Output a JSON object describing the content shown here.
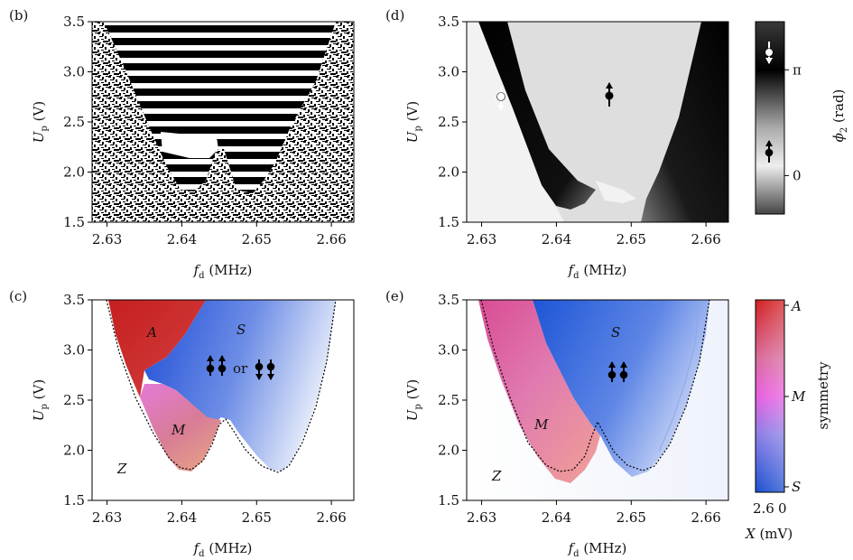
{
  "chart_data": [
    {
      "id": "b",
      "type": "heatmap",
      "panel_label": "(b)",
      "xlabel_main": "f",
      "xlabel_sub": "d",
      "xlabel_unit": " (MHz)",
      "ylabel_main": "U",
      "ylabel_sub": "p",
      "ylabel_unit": " (V)",
      "xlim": [
        2.628,
        2.663
      ],
      "ylim": [
        1.5,
        3.5
      ],
      "xticks": [
        2.63,
        2.64,
        2.65,
        2.66
      ],
      "yticks": [
        1.5,
        2.0,
        2.5,
        3.0,
        3.5
      ],
      "xtick_labels": [
        "2.63",
        "2.64",
        "2.65",
        "2.66"
      ],
      "ytick_labels": [
        "1.5",
        "2.0",
        "2.5",
        "3.0",
        "3.5"
      ],
      "colormap": "binary",
      "boundary": {
        "left_arm": [
          [
            2.6305,
            3.5
          ],
          [
            2.6345,
            3.0
          ],
          [
            2.6375,
            2.5
          ],
          [
            2.6395,
            2.1
          ],
          [
            2.641,
            1.9
          ],
          [
            2.6425,
            1.85
          ]
        ],
        "middle_peak": [
          [
            2.6435,
            1.9
          ],
          [
            2.6455,
            2.25
          ],
          [
            2.6465,
            2.3
          ],
          [
            2.648,
            2.0
          ],
          [
            2.65,
            1.85
          ],
          [
            2.6515,
            1.85
          ]
        ],
        "right_arm": [
          [
            2.653,
            1.95
          ],
          [
            2.655,
            2.15
          ],
          [
            2.657,
            2.5
          ],
          [
            2.659,
            2.95
          ],
          [
            2.6605,
            3.5
          ]
        ]
      }
    },
    {
      "id": "d",
      "type": "heatmap",
      "panel_label": "(d)",
      "xlabel_main": "f",
      "xlabel_sub": "d",
      "xlabel_unit": " (MHz)",
      "ylabel_main": "U",
      "ylabel_sub": "p",
      "ylabel_unit": " (V)",
      "xlim": [
        2.628,
        2.663
      ],
      "ylim": [
        1.5,
        3.5
      ],
      "xticks": [
        2.63,
        2.64,
        2.65,
        2.66
      ],
      "yticks": [
        1.5,
        2.0,
        2.5,
        3.0,
        3.5
      ],
      "xtick_labels": [
        "2.63",
        "2.64",
        "2.65",
        "2.66"
      ],
      "ytick_labels": [
        "1.5",
        "2.0",
        "2.5",
        "3.0",
        "3.5"
      ],
      "colormap": "gray",
      "colorbar": {
        "label": "ϕ",
        "label_sub": "2",
        "label_unit": " (rad)",
        "ticks": [
          {
            "value": "π",
            "frac": 0.75
          },
          {
            "value": "0",
            "frac": 0.2
          }
        ]
      },
      "annotations": [
        "spin-down-white",
        "spin-up-black"
      ]
    },
    {
      "id": "c",
      "type": "heatmap",
      "panel_label": "(c)",
      "xlabel_main": "f",
      "xlabel_sub": "d",
      "xlabel_unit": " (MHz)",
      "ylabel_main": "U",
      "ylabel_sub": "p",
      "ylabel_unit": " (V)",
      "xlim": [
        2.628,
        2.663
      ],
      "ylim": [
        1.5,
        3.5
      ],
      "xticks": [
        2.63,
        2.64,
        2.65,
        2.66
      ],
      "yticks": [
        1.5,
        2.0,
        2.5,
        3.0,
        3.5
      ],
      "xtick_labels": [
        "2.63",
        "2.64",
        "2.65",
        "2.66"
      ],
      "ytick_labels": [
        "1.5",
        "2.0",
        "2.5",
        "3.0",
        "3.5"
      ],
      "regions": [
        "A",
        "S",
        "M",
        "Z"
      ],
      "or_text": "or",
      "colormap": "symmetry"
    },
    {
      "id": "e",
      "type": "heatmap",
      "panel_label": "(e)",
      "xlabel_main": "f",
      "xlabel_sub": "d",
      "xlabel_unit": " (MHz)",
      "ylabel_main": "U",
      "ylabel_sub": "p",
      "ylabel_unit": " (V)",
      "xlim": [
        2.628,
        2.663
      ],
      "ylim": [
        1.5,
        3.5
      ],
      "xticks": [
        2.63,
        2.64,
        2.65,
        2.66
      ],
      "yticks": [
        1.5,
        2.0,
        2.5,
        3.0,
        3.5
      ],
      "xtick_labels": [
        "2.63",
        "2.64",
        "2.65",
        "2.66"
      ],
      "ytick_labels": [
        "1.5",
        "2.0",
        "2.5",
        "3.0",
        "3.5"
      ],
      "regions": [
        "S",
        "M",
        "Z"
      ],
      "colormap": "symmetry",
      "colorbar": {
        "label": "symmetry",
        "ticks_right": [
          "A",
          "M",
          "S"
        ],
        "bottom_ticks": [
          "2.6",
          "0"
        ],
        "bottom_label_main": "X",
        "bottom_label_unit": " (mV)"
      }
    }
  ],
  "colors": {
    "A": "#cc2a2a",
    "M": "#d874c8",
    "S": "#1a4fd0",
    "white": "#ffffff",
    "black": "#000000"
  }
}
